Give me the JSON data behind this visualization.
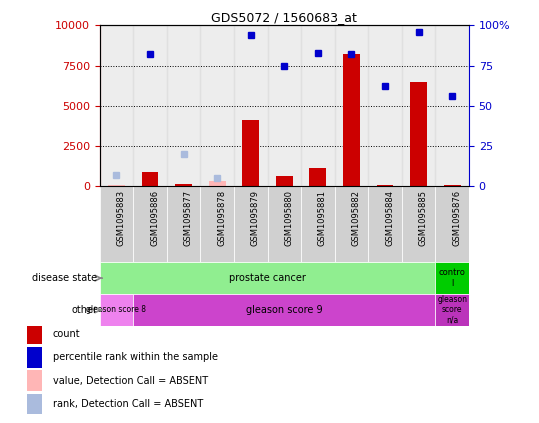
{
  "title": "GDS5072 / 1560683_at",
  "samples": [
    "GSM1095883",
    "GSM1095886",
    "GSM1095877",
    "GSM1095878",
    "GSM1095879",
    "GSM1095880",
    "GSM1095881",
    "GSM1095882",
    "GSM1095884",
    "GSM1095885",
    "GSM1095876"
  ],
  "red_bars": [
    50,
    900,
    150,
    100,
    4100,
    600,
    1100,
    8200,
    60,
    6500,
    50
  ],
  "blue_dots": [
    null,
    82,
    null,
    null,
    94,
    75,
    83,
    82,
    62,
    96,
    56
  ],
  "pink_bars": [
    100,
    null,
    null,
    300,
    null,
    null,
    null,
    null,
    null,
    null,
    null
  ],
  "lavender_dots": [
    null,
    null,
    20,
    null,
    null,
    null,
    null,
    null,
    null,
    null,
    null
  ],
  "lavender_dots2": [
    7,
    null,
    null,
    5,
    null,
    null,
    null,
    null,
    null,
    null,
    null
  ],
  "ylim_left": [
    0,
    10000
  ],
  "ylim_right": [
    0,
    100
  ],
  "yticks_left": [
    0,
    2500,
    5000,
    7500,
    10000
  ],
  "yticks_right": [
    0,
    25,
    50,
    75,
    100
  ],
  "bar_color": "#CC0000",
  "dot_color": "#0000CC",
  "pink_color": "#FFB6B6",
  "lavender_color": "#AABBDD",
  "bg_color": "#FFFFFF",
  "left_axis_color": "#CC0000",
  "right_axis_color": "#0000CC",
  "disease_light_green": "#90EE90",
  "disease_dark_green": "#00CC00",
  "gleason8_color": "#EE82EE",
  "gleason9_color": "#CC44CC",
  "gleasonNA_color": "#BB33BB",
  "legend_items": [
    {
      "label": "count",
      "color": "#CC0000"
    },
    {
      "label": "percentile rank within the sample",
      "color": "#0000CC"
    },
    {
      "label": "value, Detection Call = ABSENT",
      "color": "#FFB6B6"
    },
    {
      "label": "rank, Detection Call = ABSENT",
      "color": "#AABBDD"
    }
  ]
}
